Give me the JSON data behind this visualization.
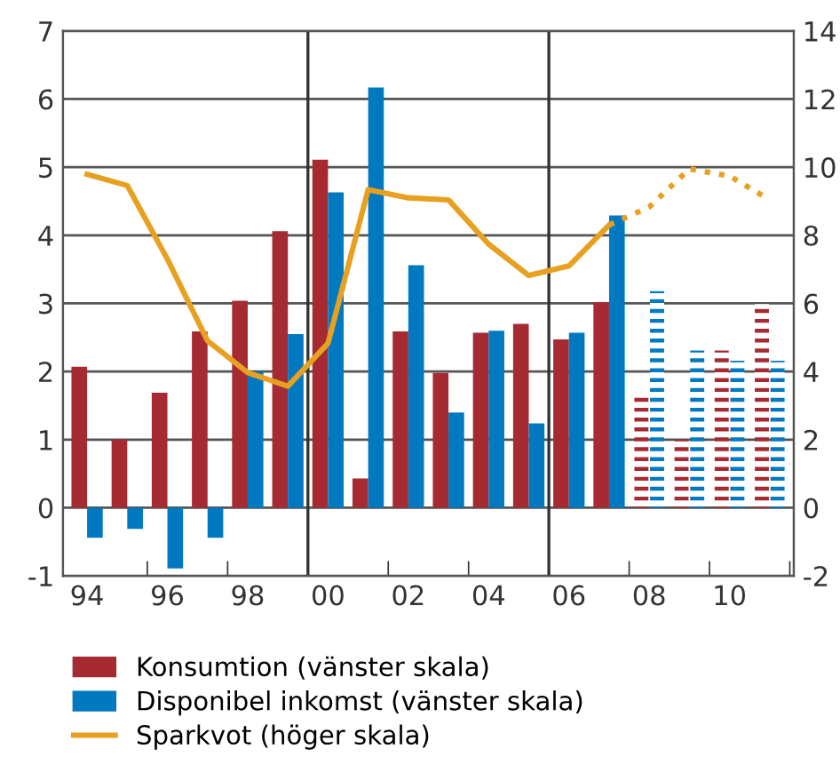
{
  "chart_data": {
    "type": "bar",
    "x": [
      1994,
      1995,
      1996,
      1997,
      1998,
      1999,
      2000,
      2001,
      2002,
      2003,
      2004,
      2005,
      2006,
      2007,
      2008,
      2009,
      2010,
      2011
    ],
    "xlim": [
      1993.4,
      2011.6
    ],
    "xticks": [
      {
        "value": 1994,
        "label": "94"
      },
      {
        "value": 1995.5,
        "label": null
      },
      {
        "value": 1996,
        "label": "96"
      },
      {
        "value": 1997.5,
        "label": null
      },
      {
        "value": 1998,
        "label": "98"
      },
      {
        "value": 2000,
        "label": "00"
      },
      {
        "value": 2001.5,
        "label": null
      },
      {
        "value": 2002,
        "label": "02"
      },
      {
        "value": 2003.5,
        "label": null
      },
      {
        "value": 2004,
        "label": "04"
      },
      {
        "value": 2006,
        "label": "06"
      },
      {
        "value": 2007.5,
        "label": null
      },
      {
        "value": 2008,
        "label": "08"
      },
      {
        "value": 2009.5,
        "label": null
      },
      {
        "value": 2010,
        "label": "10"
      },
      {
        "value": 2011.5,
        "label": null
      }
    ],
    "series": [
      {
        "name": "Konsumtion (vänster skala)",
        "color": "#a52a32",
        "values": [
          2.07,
          1.0,
          1.69,
          2.59,
          3.04,
          4.06,
          5.11,
          0.43,
          2.59,
          1.98,
          2.57,
          2.7,
          2.47,
          3.02,
          null,
          null,
          null,
          null
        ]
      },
      {
        "name": "Disponibel inkomst (vänster skala)",
        "color": "#0079c1",
        "values": [
          -0.44,
          -0.31,
          -0.89,
          -0.44,
          2.0,
          2.55,
          4.63,
          6.17,
          3.56,
          1.4,
          2.6,
          1.24,
          2.57,
          4.29,
          null,
          null,
          null,
          null
        ]
      },
      {
        "color": "#a52a32",
        "line_style": "dashed",
        "values": [
          null,
          null,
          null,
          null,
          null,
          null,
          null,
          null,
          null,
          null,
          null,
          null,
          null,
          null,
          1.7,
          1.0,
          2.31,
          2.99
        ]
      },
      {
        "color": "#0079c1",
        "line_style": "dashed",
        "values": [
          null,
          null,
          null,
          null,
          null,
          null,
          null,
          null,
          null,
          null,
          null,
          null,
          null,
          null,
          3.18,
          2.31,
          2.16,
          2.16
        ]
      },
      {
        "name": "Sparkvot (höger skala)",
        "type": "line",
        "axis": "y2",
        "color": "#e8a020",
        "line_style": "solid",
        "values": [
          9.79,
          9.46,
          7.3,
          4.9,
          3.97,
          3.57,
          4.83,
          9.34,
          9.1,
          9.04,
          7.74,
          6.82,
          7.1,
          8.3,
          null,
          null,
          null,
          null
        ]
      },
      {
        "type": "line",
        "axis": "y2",
        "color": "#e8a020",
        "line_style": "dotted",
        "values": [
          null,
          null,
          null,
          null,
          null,
          null,
          null,
          null,
          null,
          null,
          null,
          null,
          null,
          8.3,
          8.83,
          9.95,
          9.74,
          9.04
        ]
      }
    ],
    "ylim": [
      -1,
      7
    ],
    "yticks": [
      -1,
      0,
      1,
      2,
      3,
      4,
      5,
      6,
      7
    ],
    "y2lim": [
      -2,
      14
    ],
    "y2ticks": [
      -2,
      0,
      2,
      4,
      6,
      8,
      10,
      12,
      14
    ],
    "ref_lines": [
      {
        "axis": "x",
        "value": 1999.5,
        "color": "#333333"
      },
      {
        "axis": "x",
        "value": 2005.5,
        "color": "#333333"
      }
    ],
    "grid": "y",
    "legend": "bottom"
  }
}
